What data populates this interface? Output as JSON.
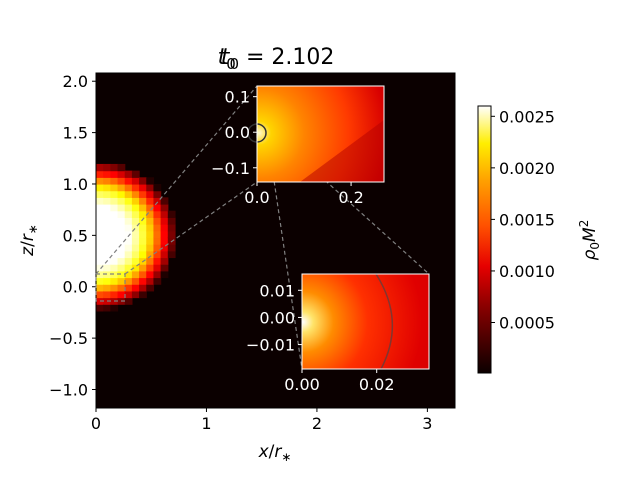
{
  "chart_data": {
    "type": "heatmap",
    "title": "t/t₀ = 2.102",
    "title_parts": {
      "var": "t",
      "sub_var": "t",
      "sub": "0",
      "eq": " = 2.102"
    },
    "xlabel": "x/r∗",
    "ylabel": "z/r∗",
    "xlim": [
      0,
      3.25
    ],
    "ylim": [
      -1.18,
      2.08
    ],
    "x_ticks": [
      {
        "value": 0,
        "label": "0"
      },
      {
        "value": 1,
        "label": "1"
      },
      {
        "value": 2,
        "label": "2"
      },
      {
        "value": 3,
        "label": "3"
      }
    ],
    "y_ticks": [
      {
        "value": -1.0,
        "label": "−1.0"
      },
      {
        "value": -0.5,
        "label": "−0.5"
      },
      {
        "value": 0.0,
        "label": "0.0"
      },
      {
        "value": 0.5,
        "label": "0.5"
      },
      {
        "value": 1.0,
        "label": "1.0"
      },
      {
        "value": 1.5,
        "label": "1.5"
      },
      {
        "value": 2.0,
        "label": "2.0"
      }
    ],
    "colormap": "hot",
    "colorbar": {
      "label": "ρ₀M²",
      "vmin": 1e-05,
      "vmax": 0.0026,
      "ticks": [
        {
          "value": 0.0005,
          "label": "0.0005"
        },
        {
          "value": 0.001,
          "label": "0.0010"
        },
        {
          "value": 0.0015,
          "label": "0.0015"
        },
        {
          "value": 0.002,
          "label": "0.0020"
        },
        {
          "value": 0.0025,
          "label": "0.0025"
        }
      ]
    },
    "field": {
      "description_kind": "density blob",
      "center": [
        0.0,
        0.5
      ],
      "radius": 0.55,
      "cell_size": 0.065
    },
    "insets": [
      {
        "xlim": [
          0,
          0.27
        ],
        "ylim": [
          -0.14,
          0.13
        ],
        "x_ticks": [
          {
            "value": 0.0,
            "label": "0.0"
          },
          {
            "value": 0.2,
            "label": "0.2"
          }
        ],
        "y_ticks": [
          {
            "value": -0.1,
            "label": "−0.1"
          },
          {
            "value": 0.0,
            "label": "0.0"
          },
          {
            "value": 0.1,
            "label": "0.1"
          }
        ],
        "circle_radius": 0.013
      },
      {
        "xlim": [
          0,
          0.034
        ],
        "ylim": [
          -0.019,
          0.016
        ],
        "x_ticks": [
          {
            "value": 0.0,
            "label": "0.00"
          },
          {
            "value": 0.02,
            "label": "0.02"
          }
        ],
        "y_ticks": [
          {
            "value": -0.01,
            "label": "−0.01"
          },
          {
            "value": 0.0,
            "label": "0.00"
          },
          {
            "value": 0.01,
            "label": "0.01"
          }
        ],
        "circle_radius": 0.0245
      }
    ]
  }
}
